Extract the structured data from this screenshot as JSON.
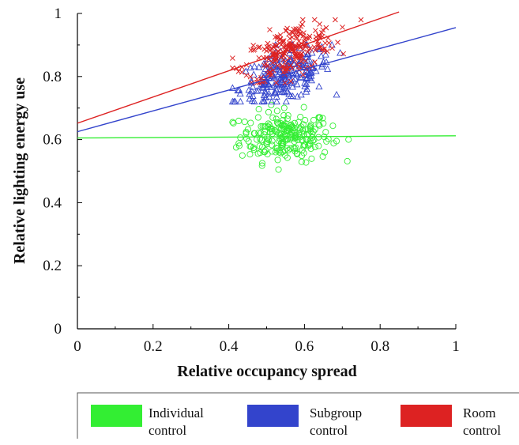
{
  "chart_data": {
    "type": "scatter",
    "title": "",
    "xlabel": "Relative occupancy spread",
    "ylabel": "Relative lighting energy use",
    "xlim": [
      0,
      1
    ],
    "ylim": [
      0,
      1
    ],
    "xticks": [
      "0",
      "0.2",
      "0.4",
      "0.6",
      "0.8",
      "1"
    ],
    "yticks": [
      "0",
      "0.2",
      "0.4",
      "0.6",
      "0.8",
      "1"
    ],
    "grid": false,
    "legend_position": "bottom",
    "series": [
      {
        "name": "Individual control",
        "legend_lines": [
          "Individual",
          "control"
        ],
        "color": "#33ee33",
        "marker": "circle",
        "x_range": [
          0.41,
          0.75
        ],
        "y_range": [
          0.47,
          0.71
        ],
        "x_center": 0.55,
        "y_center": 0.61,
        "fit_line": {
          "intercept": 0.605,
          "slope": 0.007,
          "x_end": 1.0
        }
      },
      {
        "name": "Subgroup control",
        "legend_lines": [
          "Subgroup",
          "control"
        ],
        "color": "#3344cc",
        "marker": "triangle",
        "x_range": [
          0.41,
          0.75
        ],
        "y_range": [
          0.72,
          0.9
        ],
        "x_center": 0.55,
        "y_center": 0.8,
        "fit_line": {
          "intercept": 0.625,
          "slope": 0.33,
          "x_end": 1.0
        }
      },
      {
        "name": "Room control",
        "legend_lines": [
          "Room",
          "control"
        ],
        "color": "#dd2222",
        "marker": "cross",
        "x_range": [
          0.41,
          0.75
        ],
        "y_range": [
          0.78,
          0.98
        ],
        "x_center": 0.56,
        "y_center": 0.88,
        "fit_line": {
          "intercept": 0.652,
          "slope": 0.415,
          "x_end": 0.85
        }
      }
    ]
  }
}
